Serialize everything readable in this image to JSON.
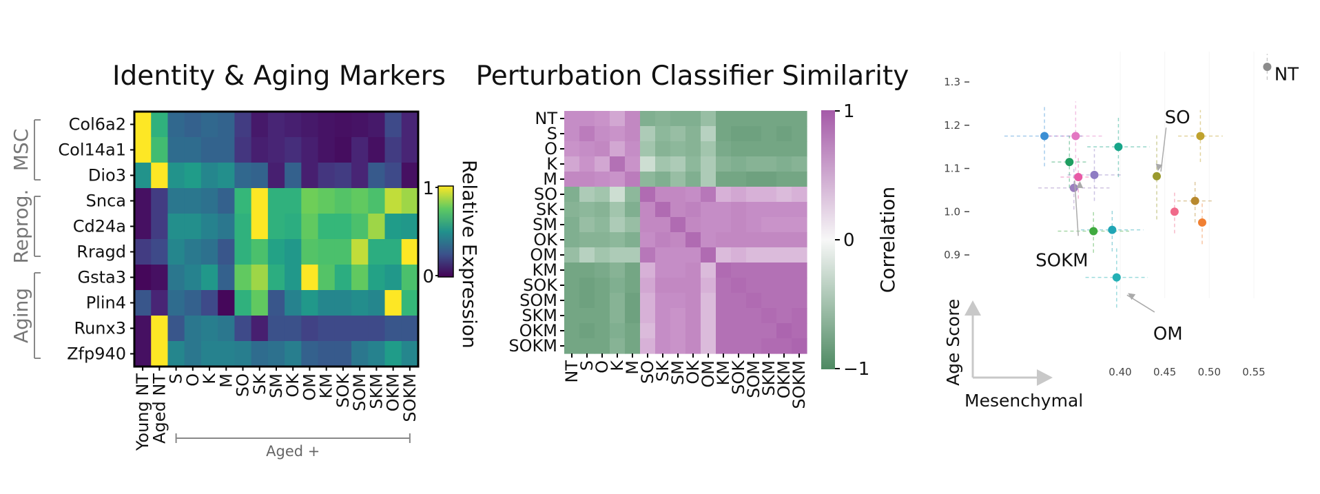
{
  "chart_data": [
    {
      "type": "heatmap",
      "title": "Identity & Aging Markers",
      "rows": [
        "Col6a2",
        "Col14a1",
        "Dio3",
        "Snca",
        "Cd24a",
        "Rragd",
        "Gsta3",
        "Plin4",
        "Runx3",
        "Zfp940"
      ],
      "columns": [
        "Young NT",
        "Aged NT",
        "S",
        "O",
        "K",
        "M",
        "SO",
        "SK",
        "SM",
        "OK",
        "OM",
        "KM",
        "SOK",
        "SOM",
        "SKM",
        "OKM",
        "SOKM"
      ],
      "row_groups": [
        {
          "label": "MSC",
          "rows": [
            "Col6a2",
            "Col14a1",
            "Dio3"
          ]
        },
        {
          "label": "Reprog.",
          "rows": [
            "Snca",
            "Cd24a",
            "Rragd"
          ]
        },
        {
          "label": "Aging",
          "rows": [
            "Gsta3",
            "Plin4",
            "Runx3",
            "Zfp940"
          ]
        }
      ],
      "column_group": {
        "label": "Aged +",
        "from": "S",
        "to": "SOKM"
      },
      "values": [
        [
          1.0,
          0.72,
          0.38,
          0.35,
          0.38,
          0.36,
          0.2,
          0.08,
          0.12,
          0.1,
          0.08,
          0.06,
          0.05,
          0.06,
          0.08,
          0.25,
          0.12
        ],
        [
          1.0,
          0.78,
          0.4,
          0.4,
          0.36,
          0.36,
          0.18,
          0.1,
          0.12,
          0.15,
          0.1,
          0.06,
          0.04,
          0.12,
          0.05,
          0.2,
          0.12
        ],
        [
          0.58,
          1.0,
          0.58,
          0.62,
          0.52,
          0.56,
          0.38,
          0.36,
          0.1,
          0.35,
          0.1,
          0.18,
          0.2,
          0.12,
          0.32,
          0.25,
          0.05
        ],
        [
          0.05,
          0.2,
          0.45,
          0.45,
          0.42,
          0.35,
          0.75,
          1.0,
          0.72,
          0.72,
          0.88,
          0.85,
          0.82,
          0.85,
          0.8,
          0.95,
          0.92
        ],
        [
          0.05,
          0.2,
          0.56,
          0.56,
          0.5,
          0.45,
          0.72,
          1.0,
          0.72,
          0.7,
          0.85,
          0.75,
          0.75,
          0.8,
          0.92,
          0.62,
          0.6
        ],
        [
          0.2,
          0.25,
          0.52,
          0.46,
          0.42,
          0.3,
          0.72,
          0.8,
          0.65,
          0.6,
          0.82,
          0.8,
          0.8,
          0.95,
          0.7,
          0.7,
          1.0
        ],
        [
          0.02,
          0.05,
          0.45,
          0.5,
          0.6,
          0.35,
          0.85,
          0.92,
          0.7,
          0.6,
          1.0,
          0.82,
          0.7,
          0.85,
          0.65,
          0.6,
          0.8
        ],
        [
          0.3,
          0.12,
          0.4,
          0.35,
          0.25,
          0.02,
          0.72,
          0.85,
          0.3,
          0.5,
          0.6,
          0.52,
          0.52,
          0.55,
          0.52,
          1.0,
          0.75
        ],
        [
          0.05,
          1.0,
          0.3,
          0.45,
          0.48,
          0.45,
          0.25,
          0.1,
          0.28,
          0.28,
          0.22,
          0.25,
          0.25,
          0.25,
          0.25,
          0.3,
          0.3
        ],
        [
          0.05,
          1.0,
          0.52,
          0.45,
          0.5,
          0.5,
          0.48,
          0.4,
          0.42,
          0.48,
          0.35,
          0.32,
          0.32,
          0.45,
          0.5,
          0.62,
          0.52
        ]
      ],
      "colorbar": {
        "label": "Relative Expression",
        "ticks": [
          0,
          1
        ],
        "colormap": "viridis"
      }
    },
    {
      "type": "heatmap",
      "title": "Perturbation Classifier Similarity",
      "labels": [
        "NT",
        "S",
        "O",
        "K",
        "M",
        "SO",
        "SK",
        "SM",
        "OK",
        "OM",
        "KM",
        "SOK",
        "SOM",
        "SKM",
        "OKM",
        "SOKM"
      ],
      "values": [
        [
          0.55,
          0.55,
          0.5,
          0.4,
          0.6,
          -0.6,
          -0.55,
          -0.6,
          -0.6,
          -0.45,
          -0.7,
          -0.7,
          -0.7,
          -0.7,
          -0.7,
          -0.7
        ],
        [
          0.55,
          0.7,
          0.55,
          0.5,
          0.6,
          -0.35,
          -0.5,
          -0.45,
          -0.55,
          -0.3,
          -0.7,
          -0.75,
          -0.75,
          -0.7,
          -0.75,
          -0.7
        ],
        [
          0.5,
          0.55,
          0.6,
          0.4,
          0.55,
          -0.4,
          -0.55,
          -0.5,
          -0.55,
          -0.4,
          -0.65,
          -0.7,
          -0.7,
          -0.7,
          -0.7,
          -0.7
        ],
        [
          0.4,
          0.5,
          0.4,
          0.8,
          0.5,
          -0.2,
          -0.4,
          -0.35,
          -0.5,
          -0.35,
          -0.55,
          -0.6,
          -0.55,
          -0.55,
          -0.6,
          -0.55
        ],
        [
          0.6,
          0.6,
          0.55,
          0.5,
          0.7,
          -0.5,
          -0.6,
          -0.45,
          -0.6,
          -0.35,
          -0.7,
          -0.7,
          -0.75,
          -0.75,
          -0.7,
          -0.7
        ],
        [
          -0.6,
          -0.35,
          -0.4,
          -0.2,
          -0.5,
          0.85,
          0.6,
          0.6,
          0.55,
          0.75,
          0.35,
          0.4,
          0.35,
          0.35,
          0.3,
          0.35
        ],
        [
          -0.55,
          -0.5,
          -0.55,
          -0.4,
          -0.6,
          0.6,
          0.85,
          0.6,
          0.65,
          0.55,
          0.55,
          0.6,
          0.55,
          0.55,
          0.55,
          0.55
        ],
        [
          -0.6,
          -0.45,
          -0.5,
          -0.35,
          -0.45,
          0.6,
          0.6,
          0.85,
          0.6,
          0.55,
          0.55,
          0.6,
          0.55,
          0.5,
          0.5,
          0.5
        ],
        [
          -0.6,
          -0.55,
          -0.55,
          -0.5,
          -0.6,
          0.55,
          0.65,
          0.6,
          0.85,
          0.55,
          0.6,
          0.6,
          0.6,
          0.6,
          0.6,
          0.6
        ],
        [
          -0.45,
          -0.3,
          -0.4,
          -0.35,
          -0.35,
          0.75,
          0.55,
          0.55,
          0.55,
          0.85,
          0.3,
          0.35,
          0.3,
          0.3,
          0.3,
          0.3
        ],
        [
          -0.7,
          -0.7,
          -0.65,
          -0.55,
          -0.7,
          0.35,
          0.55,
          0.55,
          0.6,
          0.3,
          0.85,
          0.8,
          0.8,
          0.8,
          0.8,
          0.8
        ],
        [
          -0.7,
          -0.75,
          -0.7,
          -0.6,
          -0.7,
          0.4,
          0.6,
          0.6,
          0.6,
          0.35,
          0.8,
          0.85,
          0.8,
          0.8,
          0.8,
          0.8
        ],
        [
          -0.7,
          -0.75,
          -0.7,
          -0.55,
          -0.75,
          0.35,
          0.55,
          0.55,
          0.6,
          0.3,
          0.8,
          0.8,
          0.85,
          0.8,
          0.8,
          0.8
        ],
        [
          -0.7,
          -0.7,
          -0.7,
          -0.55,
          -0.75,
          0.35,
          0.55,
          0.5,
          0.6,
          0.3,
          0.8,
          0.8,
          0.8,
          0.85,
          0.8,
          0.85
        ],
        [
          -0.7,
          -0.75,
          -0.7,
          -0.6,
          -0.7,
          0.3,
          0.55,
          0.5,
          0.6,
          0.3,
          0.8,
          0.8,
          0.8,
          0.8,
          0.9,
          0.85
        ],
        [
          -0.7,
          -0.7,
          -0.7,
          -0.55,
          -0.7,
          0.35,
          0.55,
          0.5,
          0.6,
          0.3,
          0.8,
          0.8,
          0.8,
          0.85,
          0.85,
          0.9
        ]
      ],
      "colorbar": {
        "label": "Correlation",
        "ticks": [
          1,
          0,
          -1
        ],
        "tick_labels": [
          "1",
          "0",
          "−1"
        ]
      }
    },
    {
      "type": "scatter",
      "xlabel": "Mesenchymal",
      "ylabel": "Age Score",
      "xticks": [
        0.4,
        0.45,
        0.5,
        0.55
      ],
      "xtick_labels": [
        "0.40",
        "0.45",
        "0.50",
        "0.55"
      ],
      "yticks": [
        0.9,
        1.0,
        1.1,
        1.2,
        1.3
      ],
      "ytick_labels": [
        "0.9",
        "1.0",
        "1.1",
        "1.2",
        "1.3"
      ],
      "xlim": [
        0.3,
        0.57
      ],
      "ylim": [
        0.8,
        1.37
      ],
      "grid": false,
      "annotations": [
        {
          "text": "NT",
          "point": [
            0.565,
            1.335
          ],
          "text_at": [
            0.573,
            1.32
          ]
        },
        {
          "text": "SO",
          "point": [
            0.441,
            1.08
          ],
          "text_at": [
            0.45,
            1.22
          ]
        },
        {
          "text": "SOKM",
          "point": [
            0.355,
            1.085
          ],
          "text_at": [
            0.305,
            0.89
          ]
        },
        {
          "text": "OM",
          "point": [
            0.403,
            0.82
          ],
          "text_at": [
            0.437,
            0.72
          ]
        }
      ],
      "points": [
        {
          "x": 0.565,
          "y": 1.335,
          "xerr": 0.0,
          "yerr": 0.03,
          "color": "#8c8c8c"
        },
        {
          "x": 0.315,
          "y": 1.175,
          "xerr": 0.045,
          "yerr": 0.07,
          "color": "#3b8fd4"
        },
        {
          "x": 0.35,
          "y": 1.175,
          "xerr": 0.03,
          "yerr": 0.08,
          "color": "#e377c2"
        },
        {
          "x": 0.398,
          "y": 1.15,
          "xerr": 0.035,
          "yerr": 0.07,
          "color": "#17a589"
        },
        {
          "x": 0.49,
          "y": 1.175,
          "xerr": 0.025,
          "yerr": 0.06,
          "color": "#bfa22d"
        },
        {
          "x": 0.343,
          "y": 1.115,
          "xerr": 0.02,
          "yerr": 0.06,
          "color": "#1f9e60"
        },
        {
          "x": 0.371,
          "y": 1.085,
          "xerr": 0.03,
          "yerr": 0.06,
          "color": "#8e7cc3"
        },
        {
          "x": 0.353,
          "y": 1.08,
          "xerr": 0.02,
          "yerr": 0.05,
          "color": "#e85aa6"
        },
        {
          "x": 0.441,
          "y": 1.082,
          "xerr": 0.0,
          "yerr": 0.1,
          "color": "#9a9a2e"
        },
        {
          "x": 0.348,
          "y": 1.055,
          "xerr": 0.04,
          "yerr": 0.05,
          "color": "#9b7fbf"
        },
        {
          "x": 0.484,
          "y": 1.025,
          "xerr": 0.02,
          "yerr": 0.05,
          "color": "#b8892e"
        },
        {
          "x": 0.461,
          "y": 1.0,
          "xerr": 0.0,
          "yerr": 0.05,
          "color": "#f06a8a"
        },
        {
          "x": 0.492,
          "y": 0.975,
          "xerr": 0.0,
          "yerr": 0.05,
          "color": "#f07f32"
        },
        {
          "x": 0.37,
          "y": 0.955,
          "xerr": 0.04,
          "yerr": 0.05,
          "color": "#3faa3f"
        },
        {
          "x": 0.391,
          "y": 0.958,
          "xerr": 0.035,
          "yerr": 0.05,
          "color": "#20a5b5"
        },
        {
          "x": 0.396,
          "y": 0.848,
          "xerr": 0.035,
          "yerr": 0.07,
          "color": "#24b0b5"
        }
      ]
    }
  ]
}
